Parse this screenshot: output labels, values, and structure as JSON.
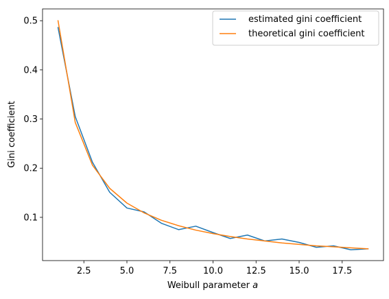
{
  "chart_data": {
    "type": "line",
    "xlabel": "Weibull parameter",
    "xlabel_symbol": "a",
    "ylabel": "Gini coefficient",
    "xlim": [
      0.1,
      19.9
    ],
    "ylim": [
      0.012,
      0.524
    ],
    "xticks": [
      2.5,
      5.0,
      7.5,
      10.0,
      12.5,
      15.0,
      17.5
    ],
    "xtick_labels": [
      "2.5",
      "5.0",
      "7.5",
      "10.0",
      "12.5",
      "15.0",
      "17.5"
    ],
    "yticks": [
      0.1,
      0.2,
      0.3,
      0.4,
      0.5
    ],
    "ytick_labels": [
      "0.1",
      "0.2",
      "0.3",
      "0.4",
      "0.5"
    ],
    "grid": false,
    "legend_position": "top-right",
    "x": [
      1,
      2,
      3,
      4,
      5,
      6,
      7,
      8,
      9,
      10,
      11,
      12,
      13,
      14,
      15,
      16,
      17,
      18,
      19
    ],
    "series": [
      {
        "name": "estimated gini coefficient",
        "color": "#1f77b4",
        "values": [
          0.486,
          0.305,
          0.212,
          0.151,
          0.119,
          0.111,
          0.088,
          0.075,
          0.082,
          0.069,
          0.057,
          0.064,
          0.052,
          0.056,
          0.049,
          0.039,
          0.042,
          0.034,
          0.036
        ]
      },
      {
        "name": "theoretical gini coefficient",
        "color": "#ff7f0e",
        "values": [
          0.5,
          0.293,
          0.206,
          0.159,
          0.129,
          0.109,
          0.094,
          0.083,
          0.074,
          0.067,
          0.061,
          0.056,
          0.052,
          0.048,
          0.045,
          0.042,
          0.04,
          0.038,
          0.036
        ]
      }
    ]
  }
}
